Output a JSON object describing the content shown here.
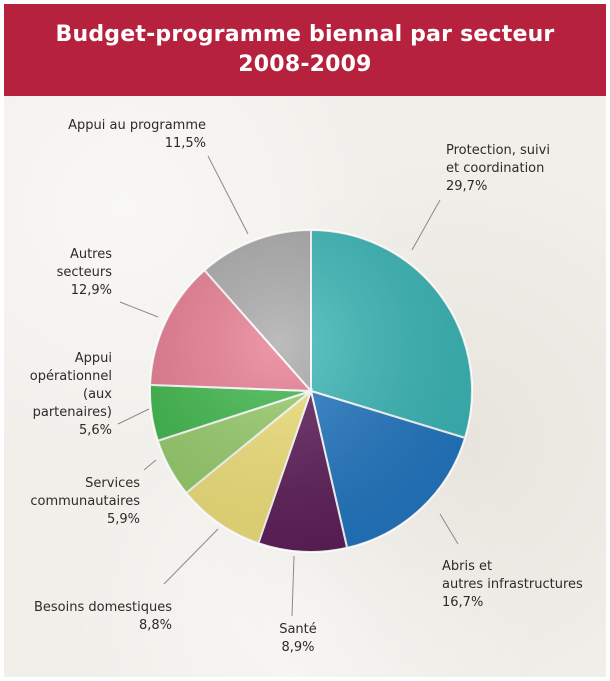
{
  "chart_data": {
    "type": "pie",
    "title": "Budget-programme biennal par secteur",
    "subtitle": "2008-2009",
    "slices": [
      {
        "label_lines": [
          "Protection, suivi",
          "et coordination"
        ],
        "value": 29.7,
        "value_text": "29,7%",
        "color": "#3ab7b7"
      },
      {
        "label_lines": [
          "Abris et",
          "autres infrastructures"
        ],
        "value": 16.7,
        "value_text": "16,7%",
        "color": "#2277c2"
      },
      {
        "label_lines": [
          "Santé"
        ],
        "value": 8.9,
        "value_text": "8,9%",
        "color": "#5e1e59"
      },
      {
        "label_lines": [
          "Besoins domestiques"
        ],
        "value": 8.8,
        "value_text": "8,8%",
        "color": "#f2e27a"
      },
      {
        "label_lines": [
          "Services",
          "communautaires"
        ],
        "value": 5.9,
        "value_text": "5,9%",
        "color": "#97cd6b"
      },
      {
        "label_lines": [
          "Appui",
          "opérationnel",
          "(aux",
          "partenaires)"
        ],
        "value": 5.6,
        "value_text": "5,6%",
        "color": "#3db84a"
      },
      {
        "label_lines": [
          "Autres",
          "secteurs"
        ],
        "value": 12.9,
        "value_text": "12,9%",
        "color": "#e87c92"
      },
      {
        "label_lines": [
          "Appui au programme"
        ],
        "value": 11.5,
        "value_text": "11,5%",
        "color": "#a9a9a9"
      }
    ]
  }
}
